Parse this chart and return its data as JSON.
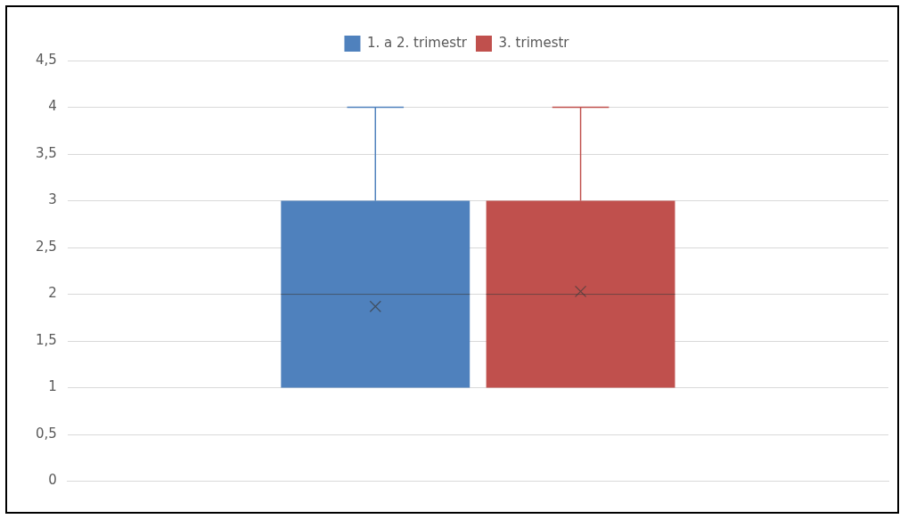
{
  "chart_data": {
    "type": "box",
    "categories": [
      null
    ],
    "series": [
      {
        "name": "1. a 2. trimestr",
        "color": "#4f81bd",
        "boxes": [
          {
            "low": 1,
            "q1": 1,
            "median": 2,
            "q3": 3,
            "high": 4,
            "mean": 1.87
          }
        ]
      },
      {
        "name": "3. trimestr",
        "color": "#c0504d",
        "boxes": [
          {
            "low": 1,
            "q1": 1,
            "median": 2,
            "q3": 3,
            "high": 4,
            "mean": 2.03
          }
        ]
      }
    ],
    "ylim": [
      0,
      4.5
    ],
    "yticks": [
      0,
      {
        "value": 0.5,
        "label": "0,5"
      },
      1,
      {
        "value": 1.5,
        "label": "1,5"
      },
      2,
      {
        "value": 2.5,
        "label": "2,5"
      },
      3,
      {
        "value": 3.5,
        "label": "3,5"
      },
      4,
      {
        "value": 4.5,
        "label": "4,5"
      }
    ],
    "grid": "y",
    "legend": "top"
  }
}
